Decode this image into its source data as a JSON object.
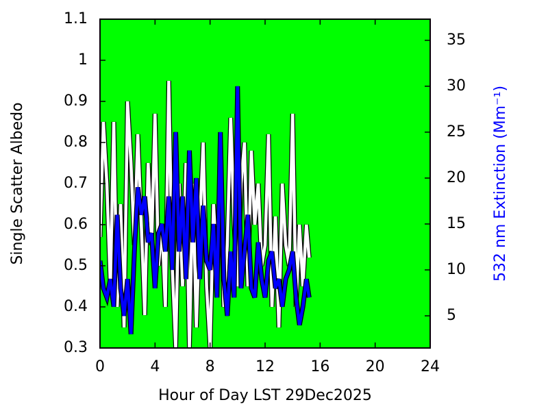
{
  "chart_data": {
    "type": "line",
    "xlabel": "Hour of Day LST 29Dec2025",
    "ylabel": "Single Scatter Albedo",
    "y2label": "532 nm Extinction (Mm⁻¹)",
    "y2label_color": "#0000ff",
    "background": "#00ff00",
    "x": [
      0,
      0.25,
      0.5,
      0.75,
      1,
      1.25,
      1.5,
      1.75,
      2,
      2.25,
      2.5,
      2.75,
      3,
      3.25,
      3.5,
      3.75,
      4,
      4.25,
      4.5,
      4.75,
      5,
      5.25,
      5.5,
      5.75,
      6,
      6.25,
      6.5,
      6.75,
      7,
      7.25,
      7.5,
      7.75,
      8,
      8.25,
      8.5,
      8.75,
      9,
      9.25,
      9.5,
      9.75,
      10,
      10.25,
      10.5,
      10.75,
      11,
      11.25,
      11.5,
      11.75,
      12,
      12.25,
      12.5,
      12.75,
      13,
      13.25,
      13.5,
      13.75,
      14,
      14.25,
      14.5,
      14.75,
      15,
      15.2
    ],
    "series": [
      {
        "name": "Single Scatter Albedo",
        "color": "#ffffff",
        "axis": "y",
        "values": [
          0.57,
          0.85,
          0.7,
          0.45,
          0.85,
          0.4,
          0.65,
          0.35,
          0.9,
          0.75,
          0.55,
          0.82,
          0.6,
          0.38,
          0.75,
          0.55,
          0.87,
          0.5,
          0.6,
          0.4,
          0.95,
          0.5,
          0.3,
          0.7,
          0.45,
          0.75,
          0.3,
          0.7,
          0.35,
          0.6,
          0.8,
          0.45,
          0.3,
          0.65,
          0.5,
          0.75,
          0.4,
          0.55,
          0.86,
          0.6,
          0.45,
          0.7,
          0.8,
          0.45,
          0.78,
          0.6,
          0.7,
          0.5,
          0.55,
          0.82,
          0.4,
          0.62,
          0.35,
          0.7,
          0.55,
          0.5,
          0.87,
          0.4,
          0.6,
          0.45,
          0.6,
          0.52
        ]
      },
      {
        "name": "532 nm Extinction",
        "color": "#0000ff",
        "axis": "y2",
        "values": [
          11,
          8,
          7,
          9,
          6,
          16,
          8,
          5,
          9,
          3,
          12,
          19,
          16,
          18,
          13,
          14,
          8,
          14,
          15,
          12,
          18,
          10,
          25,
          12,
          18,
          9,
          23,
          13,
          20,
          9,
          17,
          11,
          10,
          15,
          7,
          25,
          9,
          5,
          12,
          7,
          30,
          8,
          12,
          16,
          8,
          7,
          13,
          9,
          7,
          11,
          12,
          8,
          9,
          6,
          9,
          10,
          12,
          7,
          4,
          6,
          9,
          7
        ]
      }
    ],
    "xlim": [
      0,
      24
    ],
    "xticks": [
      0,
      4,
      8,
      12,
      16,
      20,
      24
    ],
    "ylim": [
      0.3,
      1.1
    ],
    "yticks": [
      0.3,
      0.4,
      0.5,
      0.6,
      0.7,
      0.8,
      0.9,
      1,
      1.1
    ],
    "y2lim": [
      1.5,
      37.3
    ],
    "y2ticks": [
      5,
      10,
      15,
      20,
      25,
      30,
      35
    ]
  }
}
